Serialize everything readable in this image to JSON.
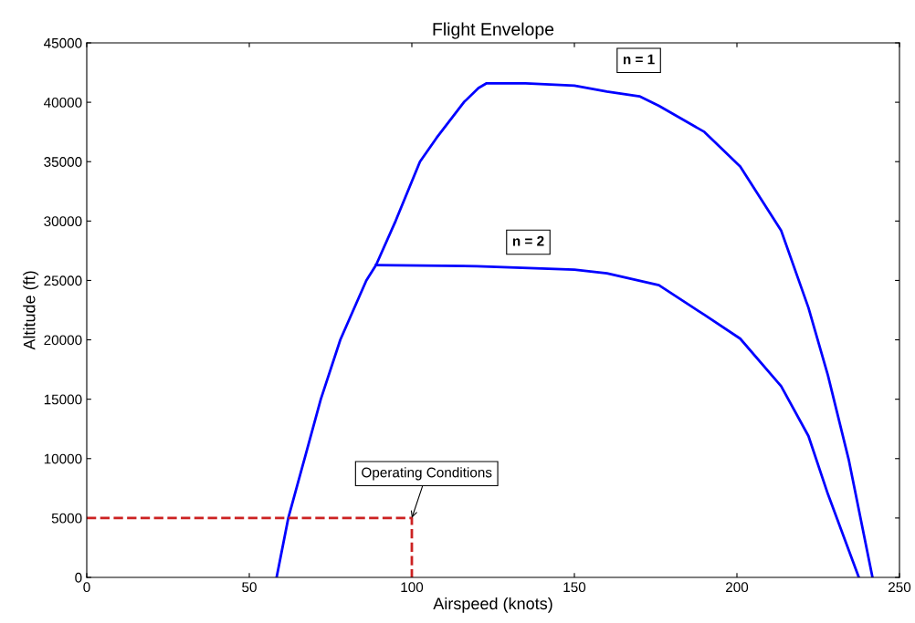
{
  "chart_data": {
    "type": "line",
    "title": "Flight Envelope",
    "xlabel": "Airspeed (knots)",
    "ylabel": "Altitude (ft)",
    "xlim": [
      0,
      250
    ],
    "xticks": [
      0,
      50,
      100,
      150,
      200,
      250
    ],
    "ylim": [
      0,
      45000
    ],
    "yticks": [
      0,
      5000,
      10000,
      15000,
      20000,
      25000,
      30000,
      35000,
      40000,
      45000
    ],
    "grid": false,
    "legend": false,
    "series": [
      {
        "name": "n = 1",
        "color": "#0000ff",
        "line_style": "solid",
        "x": [
          58.4,
          62,
          67,
          72,
          78,
          86,
          89,
          95,
          102.5,
          107.6,
          116,
          120.5,
          123,
          135,
          150,
          160,
          170,
          176,
          190,
          201,
          213.6,
          222,
          228,
          234.4,
          241.7
        ],
        "values": [
          0,
          5000,
          10000,
          15000,
          20000,
          25000,
          26300,
          30000,
          35000,
          37000,
          40000,
          41200,
          41600,
          41600,
          41400,
          40900,
          40500,
          39700,
          37500,
          34600,
          29200,
          22700,
          17000,
          9900,
          0
        ]
      },
      {
        "name": "n = 2",
        "color": "#0000ff",
        "line_style": "solid",
        "x": [
          89,
          120,
          150,
          160,
          176,
          190,
          201,
          213.6,
          222,
          228,
          237.5
        ],
        "values": [
          26300,
          26200,
          25900,
          25600,
          24600,
          22100,
          20100,
          16100,
          11900,
          7000,
          0
        ]
      },
      {
        "color": "#cc2222",
        "line_style": "dashed",
        "x": [
          0,
          100,
          100
        ],
        "values": [
          5000,
          5000,
          0
        ]
      }
    ],
    "annotations": [
      {
        "text": "Operating Conditions",
        "x": 100,
        "y": 5000
      }
    ]
  }
}
